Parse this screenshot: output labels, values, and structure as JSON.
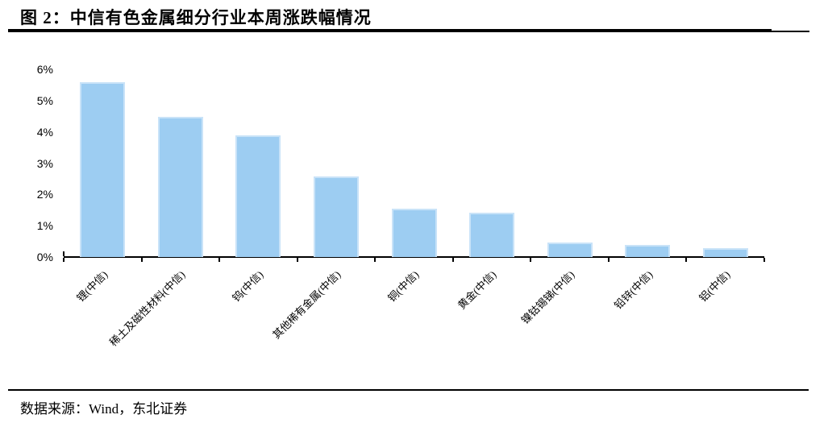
{
  "header": {
    "title": "图 2：中信有色金属细分行业本周涨跌幅情况"
  },
  "footer": {
    "source": "数据来源：Wind，东北证券"
  },
  "chart_data": {
    "type": "bar",
    "title": "中信有色金属细分行业本周涨跌幅情况",
    "categories": [
      "锂(中信)",
      "稀土及磁性材料(中信)",
      "钨(中信)",
      "其他稀有金属(中信)",
      "铜(中信)",
      "黄金(中信)",
      "镍钴锡锑(中信)",
      "铅锌(中信)",
      "铝(中信)"
    ],
    "values": [
      5.57,
      4.46,
      3.87,
      2.57,
      1.55,
      1.4,
      0.45,
      0.38,
      0.27
    ],
    "unit": "%",
    "xlabel": "",
    "ylabel": "",
    "ylim": [
      0,
      6
    ],
    "ytick_labels": [
      "0%",
      "1%",
      "2%",
      "3%",
      "4%",
      "5%",
      "6%"
    ],
    "grid": false,
    "legend_position": "none",
    "bar_color": "#9DCDF2",
    "bar_border_color": "#C9E3F8",
    "axis_color": "#000000"
  }
}
